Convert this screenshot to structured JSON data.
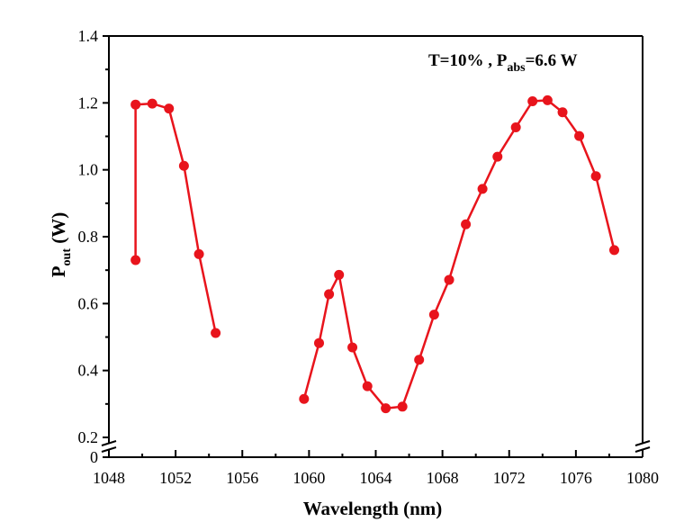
{
  "chart_data": {
    "type": "line",
    "xlabel": "Wavelength (nm)",
    "ylabel": {
      "main": "P",
      "sub": "out",
      "unit": " (W)"
    },
    "annotation": {
      "part1": "T=10% , P",
      "sub": "abs",
      "part2": "=6.6 W"
    },
    "xlim": [
      1048,
      1080
    ],
    "xticks": [
      "1048",
      "1052",
      "1056",
      "1060",
      "1064",
      "1068",
      "1072",
      "1076",
      "1080"
    ],
    "ylim": [
      0.2,
      1.4
    ],
    "yticks": [
      "0.2",
      "0.4",
      "0.6",
      "0.8",
      "1.0",
      "1.2",
      "1.4"
    ],
    "ybreak_label": "0",
    "color": "#e8141c",
    "series": [
      {
        "x": [
          1049.6,
          1049.6,
          1050.6,
          1051.6,
          1052.5,
          1053.4,
          1054.4
        ],
        "y": [
          0.73,
          1.195,
          1.198,
          1.183,
          1.012,
          0.748,
          0.512
        ]
      },
      {
        "x": [
          1059.7,
          1060.6,
          1061.2,
          1061.8,
          1062.6,
          1063.5,
          1064.6,
          1065.6,
          1066.6,
          1067.5,
          1068.4,
          1069.4,
          1070.4,
          1071.3,
          1072.4,
          1073.4,
          1074.3,
          1075.2,
          1076.2,
          1077.2,
          1078.3
        ],
        "y": [
          0.315,
          0.482,
          0.628,
          0.686,
          0.469,
          0.353,
          0.287,
          0.292,
          0.432,
          0.567,
          0.671,
          0.837,
          0.943,
          1.039,
          1.127,
          1.205,
          1.208,
          1.172,
          1.101,
          0.981,
          0.76
        ]
      }
    ]
  }
}
